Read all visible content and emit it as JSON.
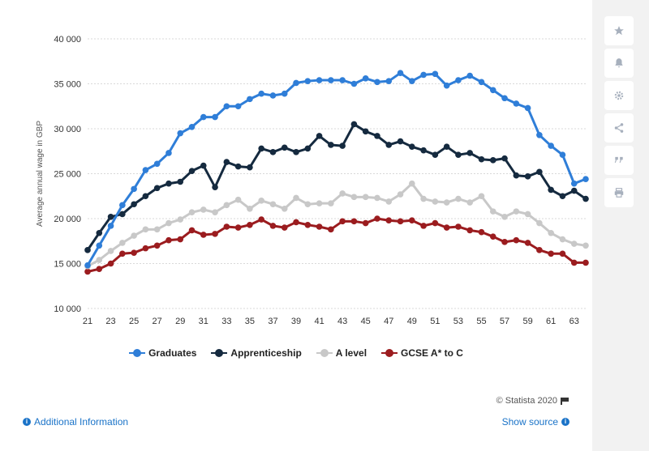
{
  "chart_data": {
    "type": "line",
    "ylabel": "Average annual wage in GBP",
    "xlabel": "",
    "ylim": [
      10000,
      40000
    ],
    "yticks": [
      10000,
      15000,
      20000,
      25000,
      30000,
      35000,
      40000
    ],
    "ytick_labels": [
      "10 000",
      "15 000",
      "20 000",
      "25 000",
      "30 000",
      "35 000",
      "40 000"
    ],
    "xlim": [
      21,
      64
    ],
    "xticks": [
      21,
      23,
      25,
      27,
      29,
      31,
      33,
      35,
      37,
      39,
      41,
      43,
      45,
      47,
      49,
      51,
      53,
      55,
      57,
      59,
      61,
      63
    ],
    "xtick_labels": [
      "21",
      "23",
      "25",
      "27",
      "29",
      "31",
      "33",
      "35",
      "37",
      "39",
      "41",
      "43",
      "45",
      "47",
      "49",
      "51",
      "53",
      "55",
      "57",
      "59",
      "61",
      "63"
    ],
    "x": [
      21,
      22,
      23,
      24,
      25,
      26,
      27,
      28,
      29,
      30,
      31,
      32,
      33,
      34,
      35,
      36,
      37,
      38,
      39,
      40,
      41,
      42,
      43,
      44,
      45,
      46,
      47,
      48,
      49,
      50,
      51,
      52,
      53,
      54,
      55,
      56,
      57,
      58,
      59,
      60,
      61,
      62,
      63,
      64
    ],
    "grid": "horizontal",
    "legend_position": "bottom",
    "series": [
      {
        "name": "Graduates",
        "color": "#2f7ed8",
        "values": [
          14800,
          17000,
          19200,
          21500,
          23300,
          25400,
          26100,
          27300,
          29500,
          30200,
          31300,
          31300,
          32500,
          32500,
          33300,
          33900,
          33700,
          33900,
          35100,
          35300,
          35400,
          35400,
          35400,
          35000,
          35600,
          35200,
          35300,
          36200,
          35300,
          36000,
          36100,
          34800,
          35400,
          35900,
          35200,
          34300,
          33400,
          32800,
          32300,
          29300,
          28100,
          27100,
          23900,
          24400
        ]
      },
      {
        "name": "Apprenticeship",
        "color": "#152a3f",
        "values": [
          16500,
          18400,
          20200,
          20500,
          21600,
          22500,
          23400,
          23900,
          24100,
          25300,
          25900,
          23500,
          26300,
          25800,
          25700,
          27800,
          27400,
          27900,
          27400,
          27800,
          29200,
          28200,
          28100,
          30500,
          29700,
          29200,
          28200,
          28600,
          28000,
          27600,
          27100,
          28000,
          27100,
          27300,
          26600,
          26500,
          26700,
          24800,
          24700,
          25200,
          23200,
          22500,
          23100,
          22200
        ]
      },
      {
        "name": "A level",
        "color": "#c8c8c8",
        "values": [
          14700,
          15400,
          16400,
          17300,
          18100,
          18800,
          18800,
          19500,
          19900,
          20700,
          21000,
          20700,
          21500,
          22100,
          21100,
          22000,
          21600,
          21100,
          22300,
          21600,
          21700,
          21700,
          22800,
          22400,
          22400,
          22300,
          21900,
          22700,
          23900,
          22200,
          21900,
          21800,
          22200,
          21800,
          22500,
          20800,
          20200,
          20800,
          20500,
          19500,
          18400,
          17700,
          17200,
          17000
        ]
      },
      {
        "name": "GCSE A* to C",
        "color": "#9b1c1f",
        "values": [
          14100,
          14400,
          15000,
          16100,
          16200,
          16700,
          17000,
          17600,
          17700,
          18700,
          18200,
          18300,
          19100,
          19000,
          19300,
          19900,
          19200,
          19000,
          19600,
          19300,
          19100,
          18800,
          19700,
          19700,
          19500,
          20000,
          19800,
          19700,
          19800,
          19200,
          19500,
          19000,
          19100,
          18700,
          18500,
          18000,
          17400,
          17600,
          17300,
          16500,
          16100,
          16100,
          15100,
          15100
        ]
      }
    ]
  },
  "footer": {
    "credit": "© Statista 2020",
    "additional_info": "Additional Information",
    "show_source": "Show source"
  },
  "sidebar": {
    "icons": [
      "star-icon",
      "bell-icon",
      "gear-icon",
      "share-icon",
      "quote-icon",
      "print-icon"
    ]
  }
}
